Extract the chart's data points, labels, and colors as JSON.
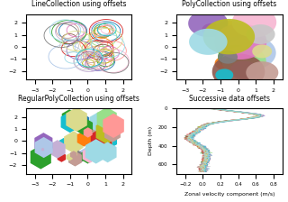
{
  "title_lc": "LineCollection using offsets",
  "title_pc": "PolyCollection using offsets",
  "title_rpc": "RegularPolyCollection using offsets",
  "title_sdo": "Successive data offsets",
  "xlabel_sdo": "Zonal velocity component (m/s)",
  "ylabel_sdo": "Depth (m)",
  "figsize": [
    3.2,
    2.24
  ],
  "dpi": 100,
  "seed": 19680801
}
